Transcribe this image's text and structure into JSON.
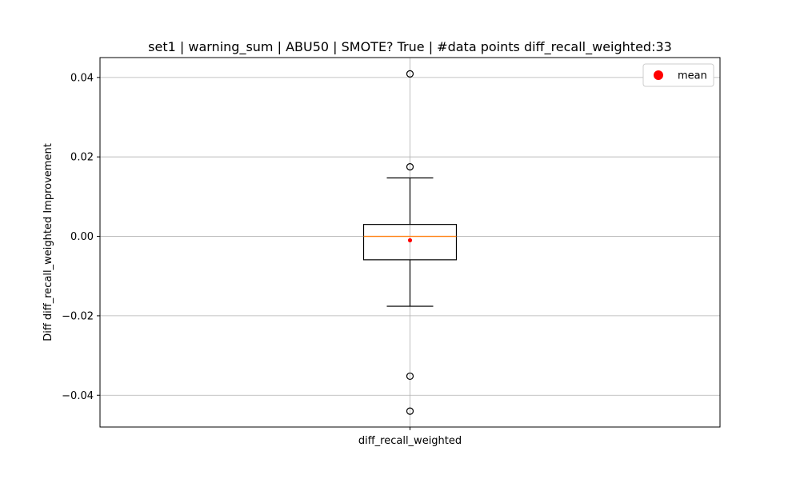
{
  "chart_data": {
    "type": "box",
    "title": "set1 | warning_sum | ABU50 | SMOTE? True | #data points diff_recall_weighted:33",
    "xlabel": "",
    "ylabel": "Diff diff_recall_weighted Improvement",
    "categories": [
      "diff_recall_weighted"
    ],
    "ylim": [
      -0.048,
      0.045
    ],
    "yticks": [
      -0.04,
      -0.02,
      0.0,
      0.02,
      0.04
    ],
    "ytick_labels": [
      "−0.04",
      "−0.02",
      "0.00",
      "0.02",
      "0.04"
    ],
    "grid": true,
    "legend": {
      "location": "upper right",
      "entries": [
        {
          "label": "mean",
          "color": "#ff0000",
          "marker": "circle"
        }
      ]
    },
    "series": [
      {
        "category": "diff_recall_weighted",
        "whisker_low": -0.0176,
        "q1": -0.0059,
        "median": 0.0,
        "q3": 0.003,
        "whisker_high": 0.0147,
        "mean": -0.001,
        "outliers": [
          0.0409,
          0.0175,
          -0.0352,
          -0.044
        ]
      }
    ],
    "colors": {
      "box": "#000000",
      "median": "#ff7f0e",
      "mean": "#ff0000",
      "grid": "#b0b0b0"
    }
  }
}
